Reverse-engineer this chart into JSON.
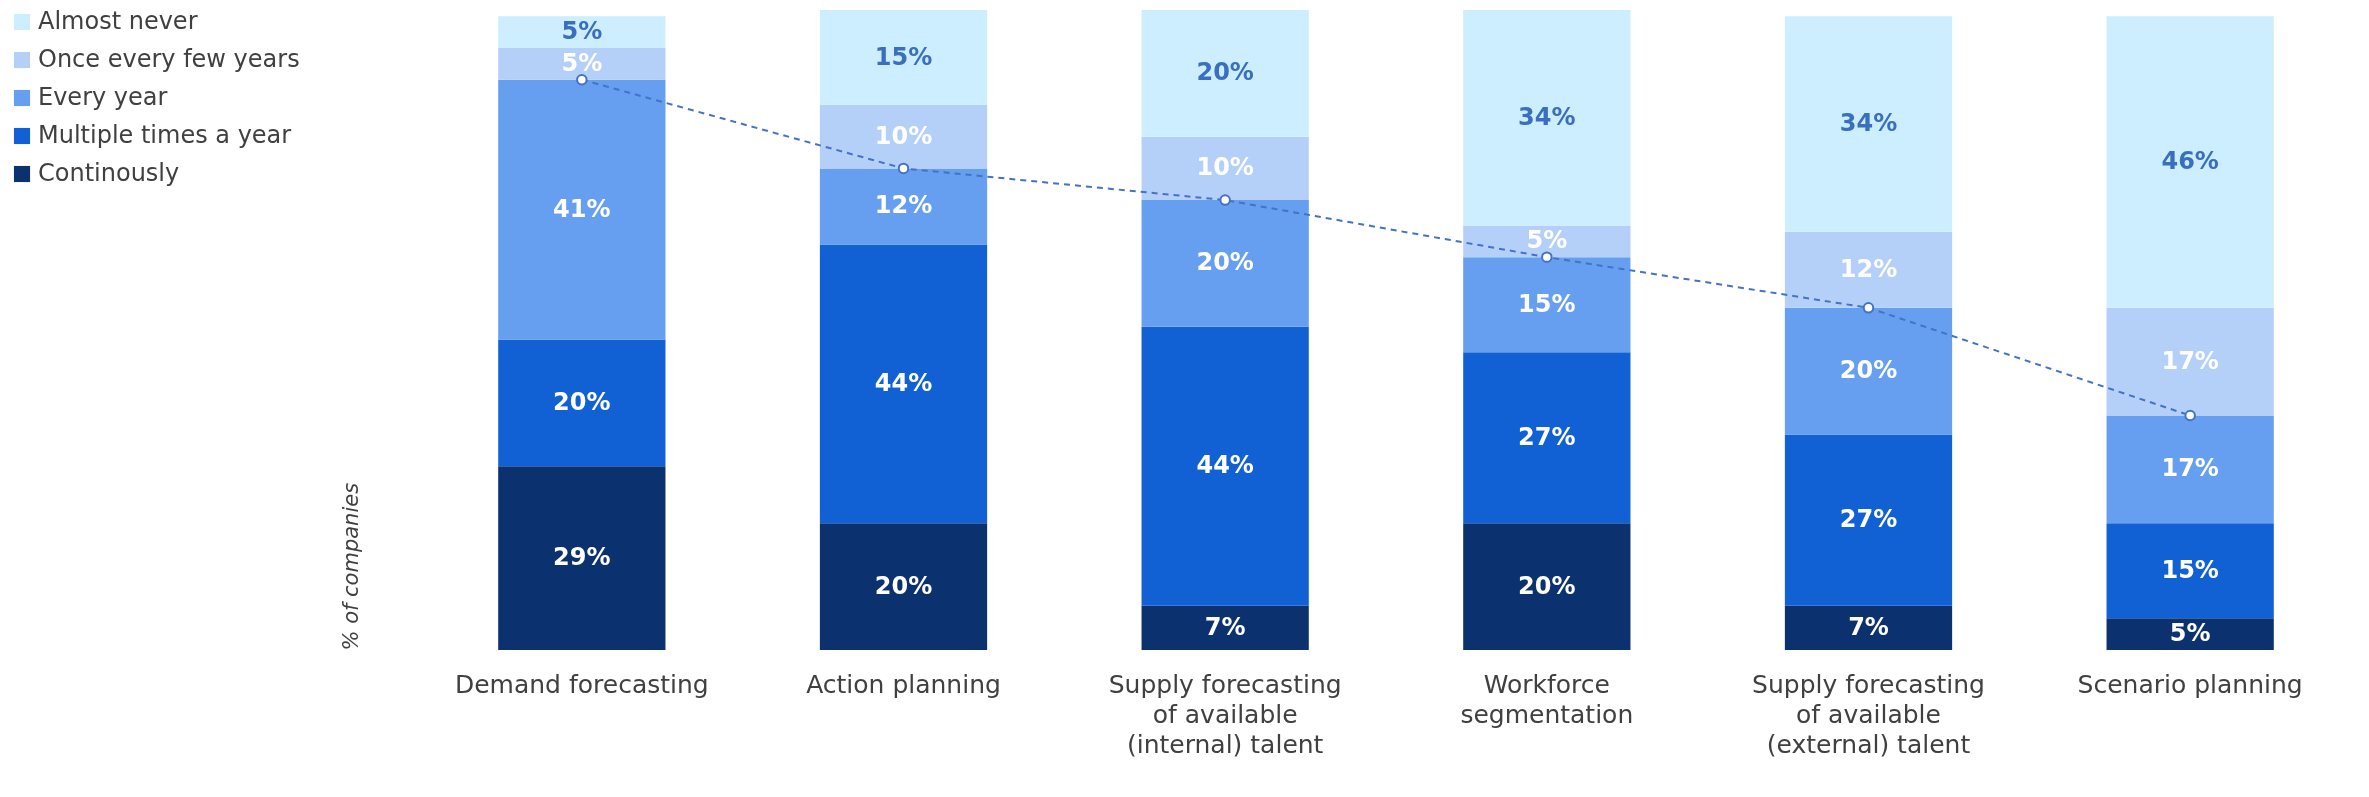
{
  "chart_data": {
    "type": "bar",
    "stacked": true,
    "ylabel": "% of companies",
    "legend": "left",
    "grid": false,
    "tick_labels": "x",
    "categories": [
      "Demand forecasting",
      "Action planning",
      "Supply forecasting of available (internal) talent",
      "Workforce segmentation",
      "Supply forecasting of available (external) talent",
      "Scenario planning"
    ],
    "series": [
      {
        "name": "Continously",
        "color": "#0b316e",
        "values": [
          29,
          20,
          7,
          20,
          7,
          5
        ],
        "value_labels": [
          "29%",
          "20%",
          "7%",
          "20%",
          "7%",
          "5%"
        ]
      },
      {
        "name": "Multiple times a year",
        "color": "#1160d4",
        "values": [
          20,
          44,
          44,
          27,
          27,
          15
        ],
        "value_labels": [
          "20%",
          "44%",
          "44%",
          "27%",
          "27%",
          "15%"
        ]
      },
      {
        "name": "Every year",
        "color": "#669ef0",
        "values": [
          41,
          12,
          20,
          15,
          20,
          17
        ],
        "value_labels": [
          "41%",
          "12%",
          "20%",
          "15%",
          "20%",
          "17%"
        ]
      },
      {
        "name": "Once every few years",
        "color": "#b5d0f8",
        "values": [
          5,
          10,
          10,
          5,
          12,
          17
        ],
        "value_labels": [
          "5%",
          "10%",
          "10%",
          "5%",
          "12%",
          "17%"
        ]
      },
      {
        "name": "Almost never",
        "color": "#cdeeff",
        "values": [
          5,
          15,
          20,
          34,
          34,
          46
        ],
        "value_labels": [
          "5%",
          "15%",
          "20%",
          "34%",
          "34%",
          "46%"
        ]
      },
      {
        "type": "line",
        "color": "#4472c4",
        "line_style": "dashed",
        "marker": "circle",
        "values": [
          90,
          76,
          71,
          62,
          54,
          37
        ]
      }
    ]
  }
}
